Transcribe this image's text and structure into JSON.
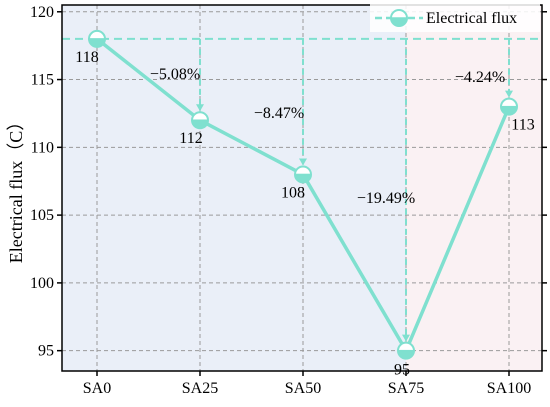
{
  "chart_data": {
    "type": "line",
    "categories": [
      "SA0",
      "SA25",
      "SA50",
      "SA75",
      "SA100"
    ],
    "series": [
      {
        "name": "Electrical flux",
        "values": [
          118,
          112,
          108,
          95,
          113
        ]
      }
    ],
    "data_labels": [
      "118",
      "112",
      "108",
      "95",
      "113"
    ],
    "change_labels": [
      "−5.08%",
      "−8.47%",
      "−19.49%",
      "−4.24%"
    ],
    "reference_line": 118,
    "title": "",
    "xlabel": "",
    "ylabel": "Electrical flux（C）",
    "ylim": [
      93.5,
      120.5
    ],
    "yticks": [
      95,
      100,
      105,
      110,
      115,
      120
    ],
    "grid": true,
    "legend_position": "top-right",
    "colors": {
      "line": "#7fe0cf",
      "marker_fill": "#ffffff",
      "reference": "#7fe0cf",
      "background_left": "#eaeff8",
      "background_right": "#faf1f3",
      "grid": "#9a9a9a",
      "axis": "#000000"
    }
  }
}
